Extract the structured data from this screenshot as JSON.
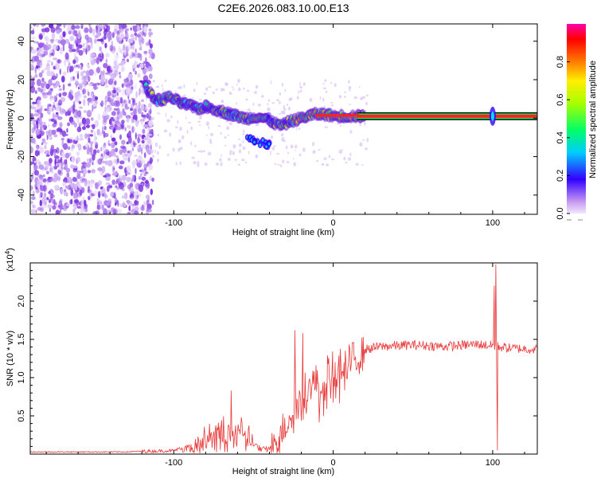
{
  "title": "C2E6.2026.083.10.00.E13",
  "chart_data": [
    {
      "type": "heatmap",
      "xlabel": "Height of straight line (km)",
      "ylabel": "Frequency (Hz)",
      "xlim": [
        -190,
        128
      ],
      "ylim": [
        -50,
        49
      ],
      "xticks": [
        -100,
        0,
        100
      ],
      "yticks": [
        -40,
        -20,
        0,
        20,
        40
      ],
      "trace": [
        [
          -118,
          17
        ],
        [
          -115,
          13
        ],
        [
          -112,
          10
        ],
        [
          -108,
          9
        ],
        [
          -104,
          11
        ],
        [
          -100,
          10
        ],
        [
          -96,
          8
        ],
        [
          -92,
          7
        ],
        [
          -88,
          6
        ],
        [
          -84,
          5
        ],
        [
          -80,
          6
        ],
        [
          -76,
          5
        ],
        [
          -72,
          4
        ],
        [
          -68,
          3
        ],
        [
          -64,
          2
        ],
        [
          -60,
          1
        ],
        [
          -56,
          0
        ],
        [
          -52,
          0
        ],
        [
          -48,
          1
        ],
        [
          -44,
          0
        ],
        [
          -40,
          -1
        ],
        [
          -36,
          -3
        ],
        [
          -32,
          -4
        ],
        [
          -28,
          -2
        ],
        [
          -24,
          -1
        ],
        [
          -20,
          0
        ],
        [
          -16,
          1
        ],
        [
          -12,
          2
        ],
        [
          -8,
          2
        ],
        [
          -4,
          2
        ],
        [
          0,
          1
        ],
        [
          4,
          1
        ],
        [
          8,
          1
        ],
        [
          12,
          1
        ],
        [
          16,
          1
        ],
        [
          20,
          1
        ]
      ],
      "branch": [
        [
          -52,
          -11
        ],
        [
          -48,
          -12
        ],
        [
          -44,
          -13
        ],
        [
          -40,
          -14
        ]
      ],
      "carrier_freq": 1,
      "carrier_start": 15,
      "spike": [
        100,
        1
      ],
      "noise_xrange": [
        -190,
        -113
      ],
      "colorbar": {
        "label": "Normalized spectral amplitude",
        "range": [
          0,
          1
        ],
        "ticks": [
          "0.0",
          "0.2",
          "0.4",
          "0.6",
          "0.8"
        ],
        "tick_values": [
          0,
          0.2,
          0.4,
          0.6,
          0.8
        ]
      }
    },
    {
      "type": "line",
      "xlabel": "Height of straight line (km)",
      "ylabel": "SNR (10 * v/v)",
      "yscale_label": "(x10",
      "yscale_exp": "4",
      "yscale_close": ")",
      "xlim": [
        -190,
        128
      ],
      "ylim": [
        0,
        2.5
      ],
      "xticks": [
        -100,
        0,
        100
      ],
      "yticks": [
        0.5,
        1.0,
        1.5,
        2.0
      ],
      "ytick_labels": [
        "0.5",
        "1.0",
        "1.5",
        "2.0"
      ],
      "color": "#e83a3a",
      "envelope": [
        [
          -190,
          0.03
        ],
        [
          -130,
          0.03
        ],
        [
          -120,
          0.04
        ],
        [
          -100,
          0.05
        ],
        [
          -90,
          0.12
        ],
        [
          -80,
          0.25
        ],
        [
          -70,
          0.35
        ],
        [
          -60,
          0.42
        ],
        [
          -55,
          0.35
        ],
        [
          -50,
          0.15
        ],
        [
          -45,
          0.06
        ],
        [
          -40,
          0.08
        ],
        [
          -35,
          0.18
        ],
        [
          -30,
          0.45
        ],
        [
          -25,
          0.65
        ],
        [
          -20,
          0.85
        ],
        [
          -15,
          0.95
        ],
        [
          -10,
          1.0
        ],
        [
          -5,
          1.1
        ],
        [
          0,
          1.15
        ],
        [
          10,
          1.25
        ],
        [
          20,
          1.38
        ],
        [
          30,
          1.42
        ],
        [
          50,
          1.44
        ],
        [
          70,
          1.42
        ],
        [
          90,
          1.45
        ],
        [
          100,
          1.43
        ],
        [
          110,
          1.4
        ],
        [
          128,
          1.38
        ]
      ],
      "spikes": [
        [
          -64,
          0.83
        ],
        [
          -24,
          1.62
        ],
        [
          -19,
          1.58
        ],
        [
          101,
          2.2
        ],
        [
          102,
          2.48
        ],
        [
          103,
          0.05
        ]
      ]
    }
  ]
}
